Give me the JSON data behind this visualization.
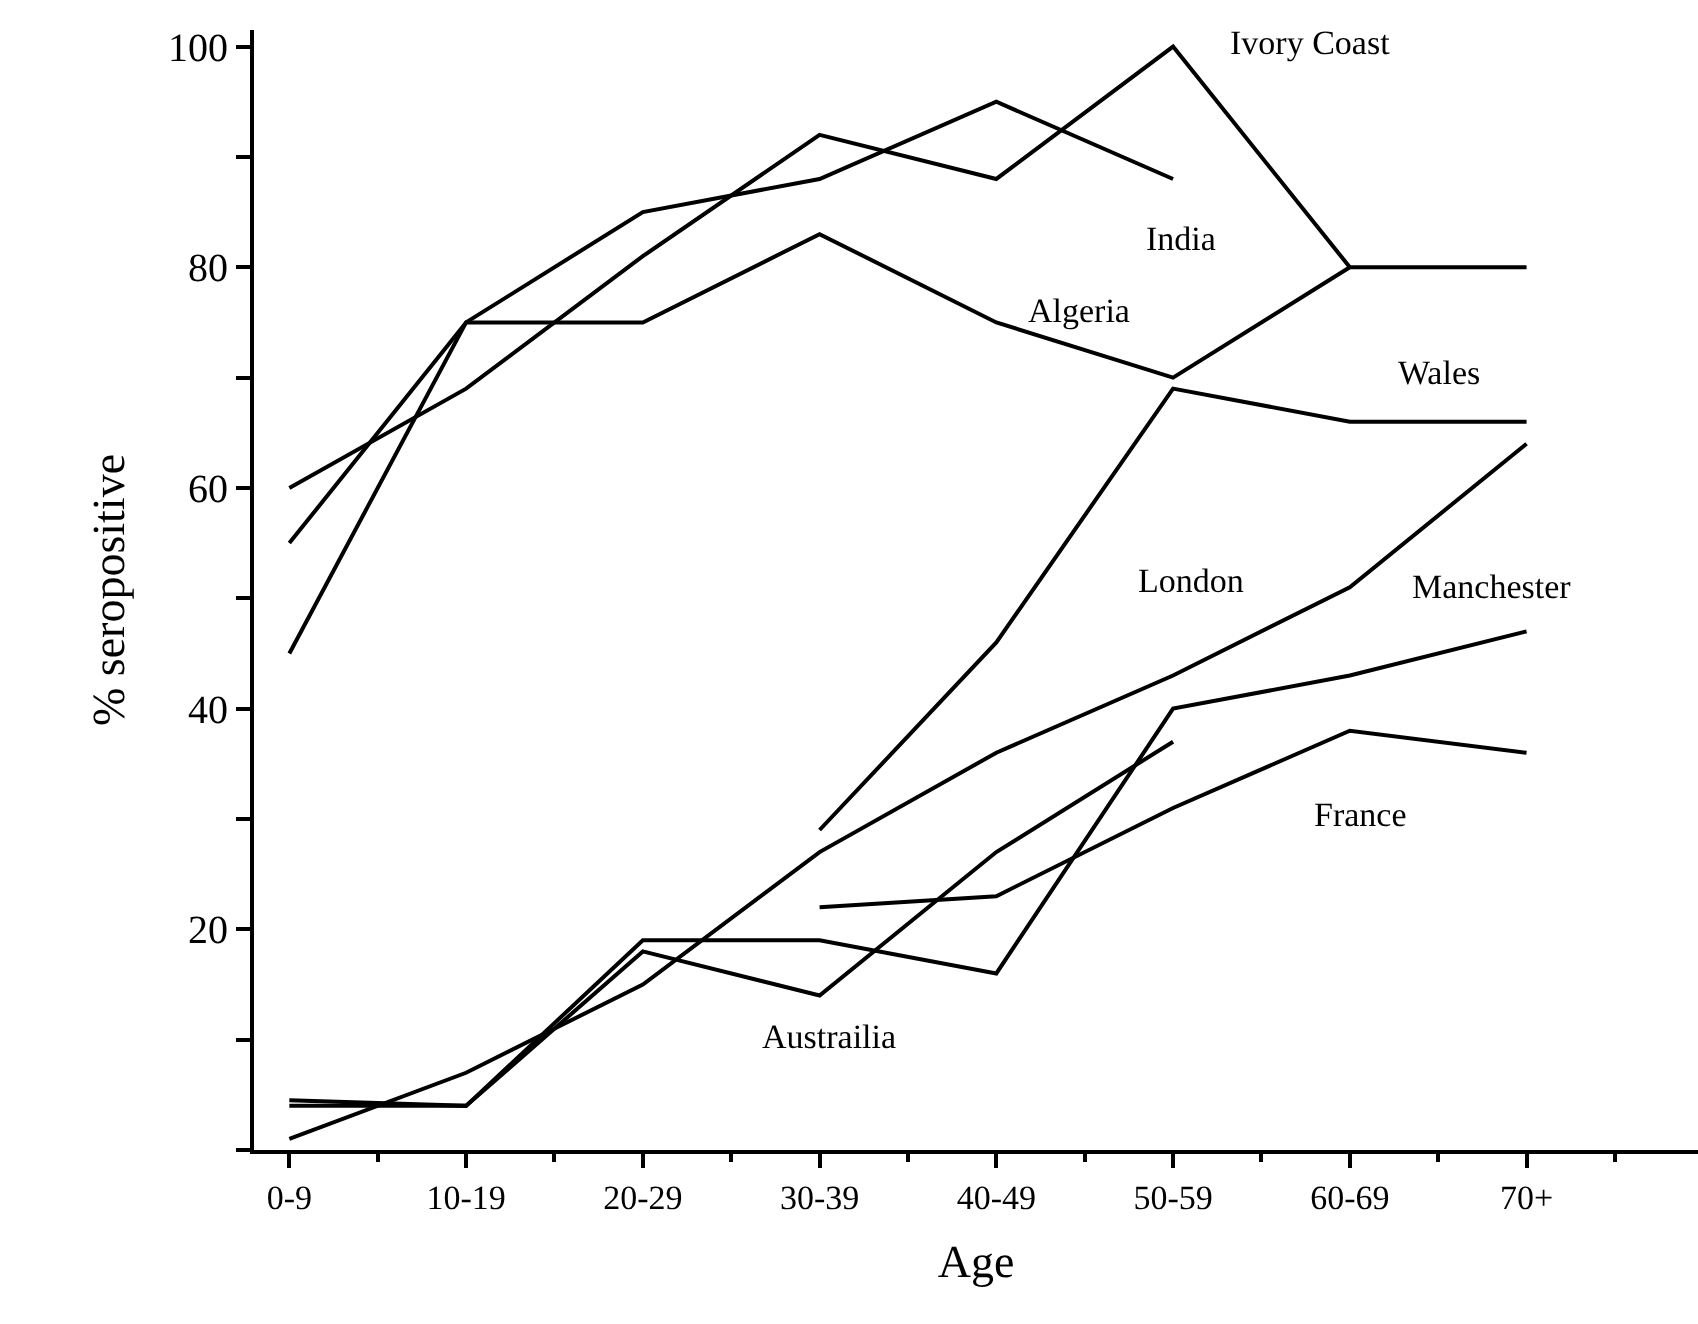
{
  "chart_data": {
    "type": "line",
    "xlabel": "Age",
    "ylabel": "% seropositive",
    "categories": [
      "0-9",
      "10-19",
      "20-29",
      "30-39",
      "40-49",
      "50-59",
      "60-69",
      "70+"
    ],
    "series": [
      {
        "name": "Ivory Coast",
        "color": "#000000",
        "values": [
          60,
          69,
          81,
          92,
          88,
          100,
          80,
          80
        ]
      },
      {
        "name": "India",
        "color": "#000000",
        "values": [
          45,
          75,
          85,
          88,
          95,
          88,
          null,
          null
        ]
      },
      {
        "name": "Algeria",
        "color": "#000000",
        "values": [
          55,
          75,
          75,
          83,
          75,
          70,
          80,
          null
        ]
      },
      {
        "name": "Wales",
        "color": "#000000",
        "values": [
          null,
          null,
          null,
          29,
          46,
          69,
          66,
          66
        ]
      },
      {
        "name": "London",
        "color": "#000000",
        "values": [
          1,
          7,
          15,
          27,
          36,
          43,
          51,
          64
        ]
      },
      {
        "name": "Manchester",
        "color": "#000000",
        "values": [
          4.5,
          4,
          19,
          19,
          16,
          40,
          43,
          47
        ]
      },
      {
        "name": "Austrailia",
        "color": "#000000",
        "values": [
          4,
          4,
          18,
          14,
          27,
          37,
          null,
          null
        ]
      },
      {
        "name": "France",
        "color": "#000000",
        "values": [
          null,
          null,
          null,
          22,
          23,
          31,
          38,
          36
        ]
      }
    ],
    "ylim": [
      0,
      101.5
    ],
    "yticks": [
      {
        "value": 0,
        "label": null
      },
      {
        "value": 10,
        "label": null
      },
      20,
      {
        "value": 30,
        "label": null
      },
      40,
      {
        "value": 50,
        "label": null
      },
      60,
      {
        "value": 70,
        "label": null
      },
      80,
      {
        "value": 90,
        "label": null
      },
      100
    ],
    "legend": false,
    "marker": "none",
    "line_style": "solid"
  }
}
